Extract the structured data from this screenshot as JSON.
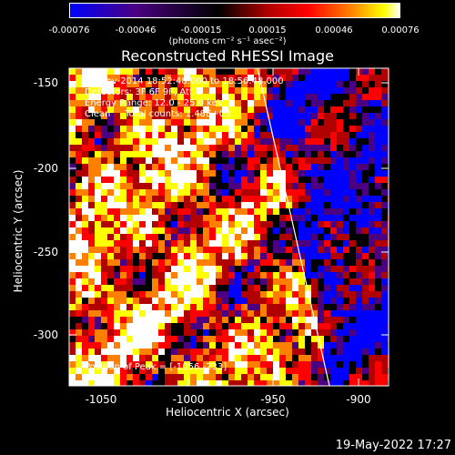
{
  "colorbar": {
    "ticks": [
      "-0.00076",
      "-0.00046",
      "-0.00015",
      "0.00015",
      "0.00046",
      "0.00076"
    ],
    "units": "(photons cm⁻² s⁻¹ asec⁻²)"
  },
  "title": "Reconstructed RHESSI Image",
  "annotations": {
    "time_range": "19-Nov-2014 18:52:48.000 to 18:56:48.000",
    "detectors": "Detectors: 3F 6F 9F, Att 0",
    "energy_range": "Energy Range: 12.0 - 25.0 keV",
    "method_counts": "Clean     Total counts: 1.48E+03",
    "peak": "Position of Peak = [-1056,-233]"
  },
  "axes": {
    "xlabel": "Heliocentric X (arcsec)",
    "ylabel": "Heliocentric Y (arcsec)",
    "xticks": [
      "-1050",
      "-1000",
      "-950",
      "-900"
    ],
    "yticks": [
      "-150",
      "-200",
      "-250",
      "-300"
    ]
  },
  "timestamp": "19-May-2022 17:27",
  "colors": {
    "colormap": [
      "#0000ff",
      "#4b0082",
      "#000000",
      "#b00000",
      "#ff0000",
      "#ff8000",
      "#ffff00",
      "#ffffff"
    ],
    "limb": "#ffffff"
  }
}
